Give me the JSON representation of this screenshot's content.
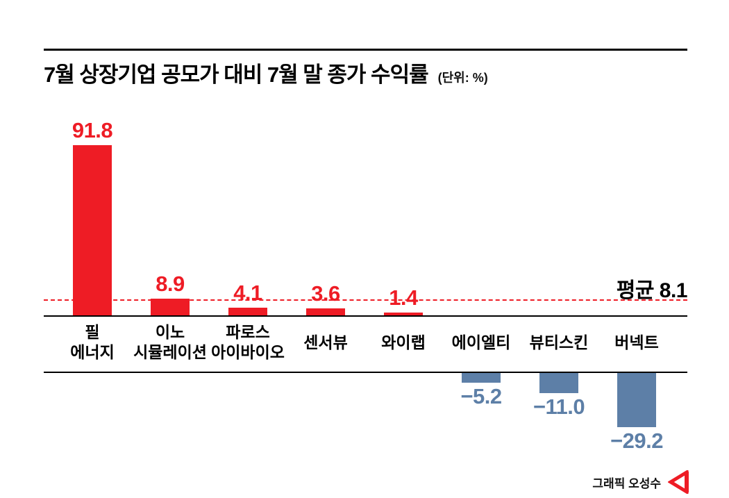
{
  "header": {
    "title": "7월 상장기업 공모가 대비 7월 말 종가 수익률",
    "unit": "(단위: %)"
  },
  "chart_data": {
    "type": "bar",
    "title": "7월 상장기업 공모가 대비 7월 말 종가 수익률",
    "unit_label": "(단위: %)",
    "categories": [
      "필\n에너지",
      "이노\n시뮬레이션",
      "파로스\n아이바이오",
      "센서뷰",
      "와이랩",
      "에이엘티",
      "뷰티스킨",
      "버넥트"
    ],
    "values": [
      91.8,
      8.9,
      4.1,
      3.6,
      1.4,
      -5.2,
      -11.0,
      -29.2
    ],
    "value_labels": [
      "91.8",
      "8.9",
      "4.1",
      "3.6",
      "1.4",
      "−5.2",
      "−11.0",
      "−29.2"
    ],
    "average": 8.1,
    "average_label": "평균 8.1",
    "positive_color": "#ee1c25",
    "negative_color": "#5d7fa7",
    "axis_color": "#000000",
    "ylim": [
      -35,
      100
    ],
    "grid": false,
    "legend": false
  },
  "footer": {
    "credit": "그래픽 오성수"
  }
}
